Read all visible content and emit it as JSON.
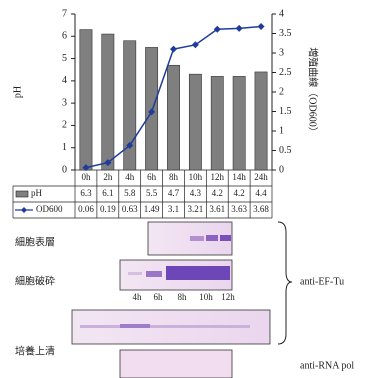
{
  "chart_data": {
    "type": "bar",
    "y_label": "pH",
    "y2_label": "増殖曲線（OD600）",
    "categories": [
      "0h",
      "2h",
      "4h",
      "6h",
      "8h",
      "10h",
      "12h",
      "14h",
      "24h"
    ],
    "series": [
      {
        "name": "pH",
        "type": "bar",
        "color": "#7f7f7f",
        "values": [
          6.3,
          6.1,
          5.8,
          5.5,
          4.7,
          4.3,
          4.2,
          4.2,
          4.4
        ]
      },
      {
        "name": "OD600",
        "type": "line",
        "axis": "y2",
        "color": "#1f3c9a",
        "values": [
          0.06,
          0.19,
          0.63,
          1.49,
          3.1,
          3.21,
          3.61,
          3.63,
          3.68
        ]
      }
    ],
    "ylim": [
      0,
      7
    ],
    "yticks": [
      0,
      1,
      2,
      3,
      4,
      5,
      6,
      7
    ],
    "y2lim": [
      0,
      4
    ],
    "y2ticks": [
      0,
      0.5,
      1,
      1.5,
      2,
      2.5,
      3,
      3.5,
      4
    ],
    "grid": false
  },
  "blots": {
    "fractions": [
      "細胞表層",
      "細胞破砕",
      "培養上清"
    ],
    "lanes": [
      "4h",
      "6h",
      "8h",
      "10h",
      "12h"
    ],
    "antibodies": [
      "anti-EF-Tu",
      "anti-RNA pol"
    ]
  }
}
